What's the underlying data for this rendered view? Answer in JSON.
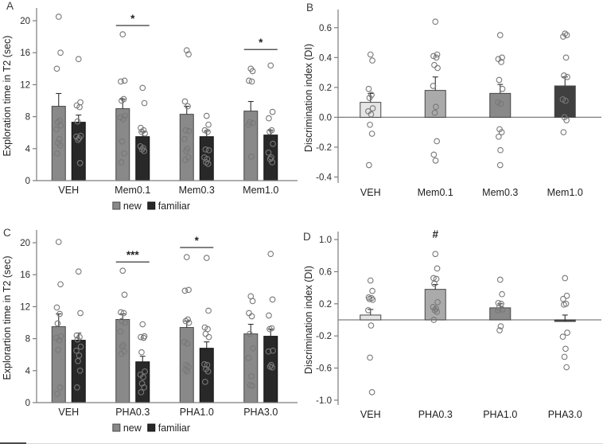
{
  "style": {
    "bar_new_color": "#898989",
    "bar_new_border": "#474747",
    "bar_familiar_color": "#282828",
    "bar_familiar_border": "#101010",
    "single_bar_border": "#474747",
    "point_stroke": "#787878",
    "axis_color": "#7d7d7d",
    "tick_text_color": "#2b2b2b",
    "label_text_color": "#1f1f1f",
    "error_color": "#303030",
    "significance_color": "#222222"
  },
  "chart_data": [
    {
      "panel": "A",
      "type": "bar",
      "variant": "grouped_scatter",
      "ylabel": "Exploration time in T2 (sec)",
      "ylim": [
        0,
        21.2
      ],
      "yticks": [
        0,
        4,
        8,
        12,
        16,
        20
      ],
      "tick_format": "int",
      "categories": [
        "VEH",
        "Mem0.1",
        "Mem0.3",
        "Mem1.0"
      ],
      "series": [
        {
          "name": "new",
          "mean": [
            9.3,
            9.0,
            8.3,
            8.7
          ],
          "sem": [
            1.6,
            1.2,
            1.0,
            1.2
          ],
          "points": [
            [
              20.5,
              16.0,
              14.0,
              7.5,
              7.3,
              6.9,
              6.4,
              5.2,
              4.7,
              4.4,
              3.4
            ],
            [
              18.3,
              12.5,
              12.4,
              10.2,
              10.0,
              8.1,
              7.9,
              7.7,
              4.9,
              3.4,
              2.3
            ],
            [
              16.3,
              15.8,
              9.9,
              9.3,
              6.3,
              6.2,
              5.2,
              4.0,
              3.7,
              2.9,
              2.6
            ],
            [
              14.0,
              13.7,
              12.5,
              12.4,
              7.3,
              7.2,
              7.0,
              3.0
            ]
          ]
        },
        {
          "name": "familiar",
          "mean": [
            7.3,
            5.5,
            5.5,
            5.7
          ],
          "sem": [
            0.9,
            0.6,
            0.7,
            0.6
          ],
          "points": [
            [
              15.2,
              9.8,
              9.4,
              9.2,
              7.4,
              5.6,
              5.5,
              5.3,
              5.1,
              2.2
            ],
            [
              11.6,
              9.7,
              6.6,
              6.3,
              6.1,
              5.9,
              4.3,
              4.1,
              3.9,
              3.7
            ],
            [
              8.1,
              7.0,
              6.3,
              6.1,
              3.9,
              3.8,
              2.9,
              2.7,
              2.3,
              2.1
            ],
            [
              14.4,
              8.6,
              7.8,
              6.3,
              6.1,
              4.6,
              3.5,
              2.9,
              2.7,
              2.3
            ]
          ]
        }
      ],
      "significance": [
        {
          "category": "Mem0.1",
          "label": "*",
          "y": 19.4,
          "line": true
        },
        {
          "category": "Mem1.0",
          "label": "*",
          "y": 16.4,
          "line": true
        }
      ],
      "legend": {
        "labels": [
          "new",
          "familiar"
        ],
        "position": "bottom"
      }
    },
    {
      "panel": "B",
      "type": "bar",
      "variant": "single_scatter",
      "ylabel": "Discrimination index (DI)",
      "ylim": [
        -0.44,
        0.7
      ],
      "yticks": [
        0.6,
        0.4,
        0.2,
        0.0,
        -0.2,
        -0.4
      ],
      "tick_format": "1dp",
      "categories": [
        "VEH",
        "Mem0.1",
        "Mem0.3",
        "Mem1.0"
      ],
      "zero_line": true,
      "bars": {
        "mean": [
          0.1,
          0.18,
          0.16,
          0.21
        ],
        "sem": [
          0.06,
          0.09,
          0.06,
          0.06
        ],
        "colors": [
          "#e5e5e5",
          "#aaaaaa",
          "#898989",
          "#404040"
        ],
        "points": [
          [
            0.42,
            0.38,
            0.19,
            0.15,
            0.13,
            0.06,
            0.04,
            0.02,
            -0.05,
            -0.11,
            -0.32
          ],
          [
            0.64,
            0.42,
            0.41,
            0.4,
            0.35,
            0.33,
            0.21,
            0.07,
            0.03,
            -0.16,
            -0.25,
            -0.29
          ],
          [
            0.55,
            0.4,
            0.39,
            0.37,
            0.25,
            0.19,
            0.1,
            0.09,
            -0.08,
            -0.1,
            -0.13,
            -0.22,
            -0.32
          ],
          [
            0.56,
            0.55,
            0.54,
            0.4,
            0.28,
            0.27,
            0.12,
            0.11,
            0.0,
            -0.02,
            -0.1
          ]
        ]
      },
      "significance": []
    },
    {
      "panel": "C",
      "type": "bar",
      "variant": "grouped_scatter",
      "ylabel": "Explorartion time in T2 (sec)",
      "ylim": [
        0,
        21.2
      ],
      "yticks": [
        0,
        4,
        8,
        12,
        16,
        20
      ],
      "tick_format": "int",
      "categories": [
        "VEH",
        "PHA0.3",
        "PHA1.0",
        "PHA3.0"
      ],
      "series": [
        {
          "name": "new",
          "mean": [
            9.5,
            10.4,
            9.4,
            8.6
          ],
          "sem": [
            1.6,
            0.7,
            0.8,
            1.2
          ],
          "points": [
            [
              20.1,
              14.8,
              11.9,
              11.1,
              9.9,
              8.3,
              8.1,
              7.8,
              6.6,
              1.9,
              1.1
            ],
            [
              16.5,
              13.5,
              11.3,
              11.2,
              10.2,
              10.0,
              8.9,
              7.2,
              7.0,
              6.4,
              6.1
            ],
            [
              18.2,
              14.1,
              14.0,
              10.4,
              10.2,
              10.0,
              7.6,
              7.4,
              4.7,
              4.5,
              4.1,
              3.9
            ],
            [
              13.3,
              12.7,
              11.2,
              10.8,
              8.6,
              6.8,
              5.6,
              3.3,
              2.2,
              2.1
            ]
          ]
        },
        {
          "name": "familiar",
          "mean": [
            7.8,
            5.1,
            6.8,
            8.3
          ],
          "sem": [
            0.9,
            0.7,
            0.8,
            0.9
          ],
          "points": [
            [
              16.4,
              11.2,
              8.4,
              8.2,
              7.9,
              7.0,
              6.5,
              5.9,
              5.2,
              4.0,
              1.9
            ],
            [
              9.8,
              8.3,
              8.2,
              8.1,
              6.3,
              3.9,
              3.5,
              3.2,
              2.4,
              1.9,
              1.3
            ],
            [
              18.1,
              11.5,
              9.4,
              9.2,
              8.6,
              8.2,
              4.8,
              4.7,
              4.2,
              3.9,
              2.6
            ],
            [
              18.6,
              12.9,
              10.9,
              9.3,
              9.2,
              6.5,
              6.4,
              4.7,
              4.5,
              4.4
            ]
          ]
        }
      ],
      "significance": [
        {
          "category": "PHA0.3",
          "label": "***",
          "y": 17.6,
          "line": true
        },
        {
          "category": "PHA1.0",
          "label": "*",
          "y": 19.4,
          "line": true
        }
      ],
      "legend": {
        "labels": [
          "new",
          "familiar"
        ],
        "position": "bottom"
      }
    },
    {
      "panel": "D",
      "type": "bar",
      "variant": "single_scatter",
      "ylabel": "Discrimination index (DI)",
      "ylim": [
        -1.06,
        1.06
      ],
      "yticks": [
        1.0,
        0.6,
        0.2,
        -0.2,
        -0.6,
        -1.0
      ],
      "tick_format": "1dp",
      "categories": [
        "VEH",
        "PHA0.3",
        "PHA1.0",
        "PHA3.0"
      ],
      "zero_line": true,
      "bars": {
        "mean": [
          0.06,
          0.38,
          0.15,
          -0.02
        ],
        "sem": [
          0.07,
          0.06,
          0.05,
          0.08
        ],
        "colors": [
          "#e5e5e5",
          "#aaaaaa",
          "#898989",
          "#404040"
        ],
        "points": [
          [
            0.49,
            0.36,
            0.28,
            0.27,
            0.26,
            0.25,
            0.12,
            -0.07,
            -0.47,
            -0.9
          ],
          [
            0.82,
            0.64,
            0.52,
            0.51,
            0.45,
            0.22,
            0.16,
            0.14,
            0.12,
            0.1,
            0.0
          ],
          [
            0.5,
            0.32,
            0.21,
            0.2,
            0.15,
            0.13,
            0.12,
            -0.08,
            -0.13
          ],
          [
            0.52,
            0.3,
            0.26,
            0.2,
            0.19,
            -0.16,
            -0.21,
            -0.36,
            -0.46,
            -0.59
          ]
        ]
      },
      "significance": [
        {
          "category": "PHA0.3",
          "label": "#",
          "y": 0.98,
          "line": false
        }
      ]
    }
  ]
}
